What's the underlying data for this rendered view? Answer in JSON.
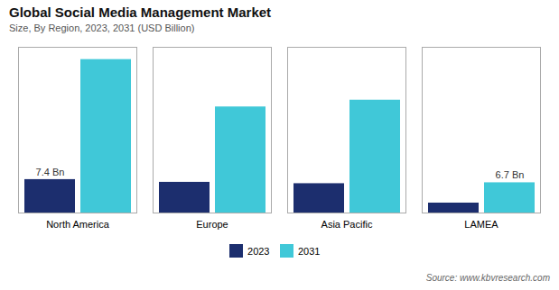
{
  "chart_data": {
    "type": "bar",
    "title": "Global Social Media Management Market",
    "subtitle": "Size, By Region, 2023, 2031 (USD Billion)",
    "caption": "Source: www.kbvresearch.com",
    "categories": [
      "North America",
      "Europe",
      "Asia Pacific",
      "LAMEA"
    ],
    "series": [
      {
        "name": "2023",
        "color": "#1c2e6e",
        "values": [
          7.4,
          6.8,
          6.5,
          2.2
        ]
      },
      {
        "name": "2031",
        "color": "#40c8d8",
        "values": [
          34.0,
          23.5,
          25.0,
          6.7
        ]
      }
    ],
    "annotations": [
      {
        "text": "7.4 Bn",
        "category": "North America",
        "series": "2023"
      },
      {
        "text": "6.7 Bn",
        "category": "LAMEA",
        "series": "2031"
      }
    ],
    "ylim": [
      0,
      36.72
    ],
    "tick_labels": "x",
    "grid": false,
    "legend": "bottom"
  }
}
